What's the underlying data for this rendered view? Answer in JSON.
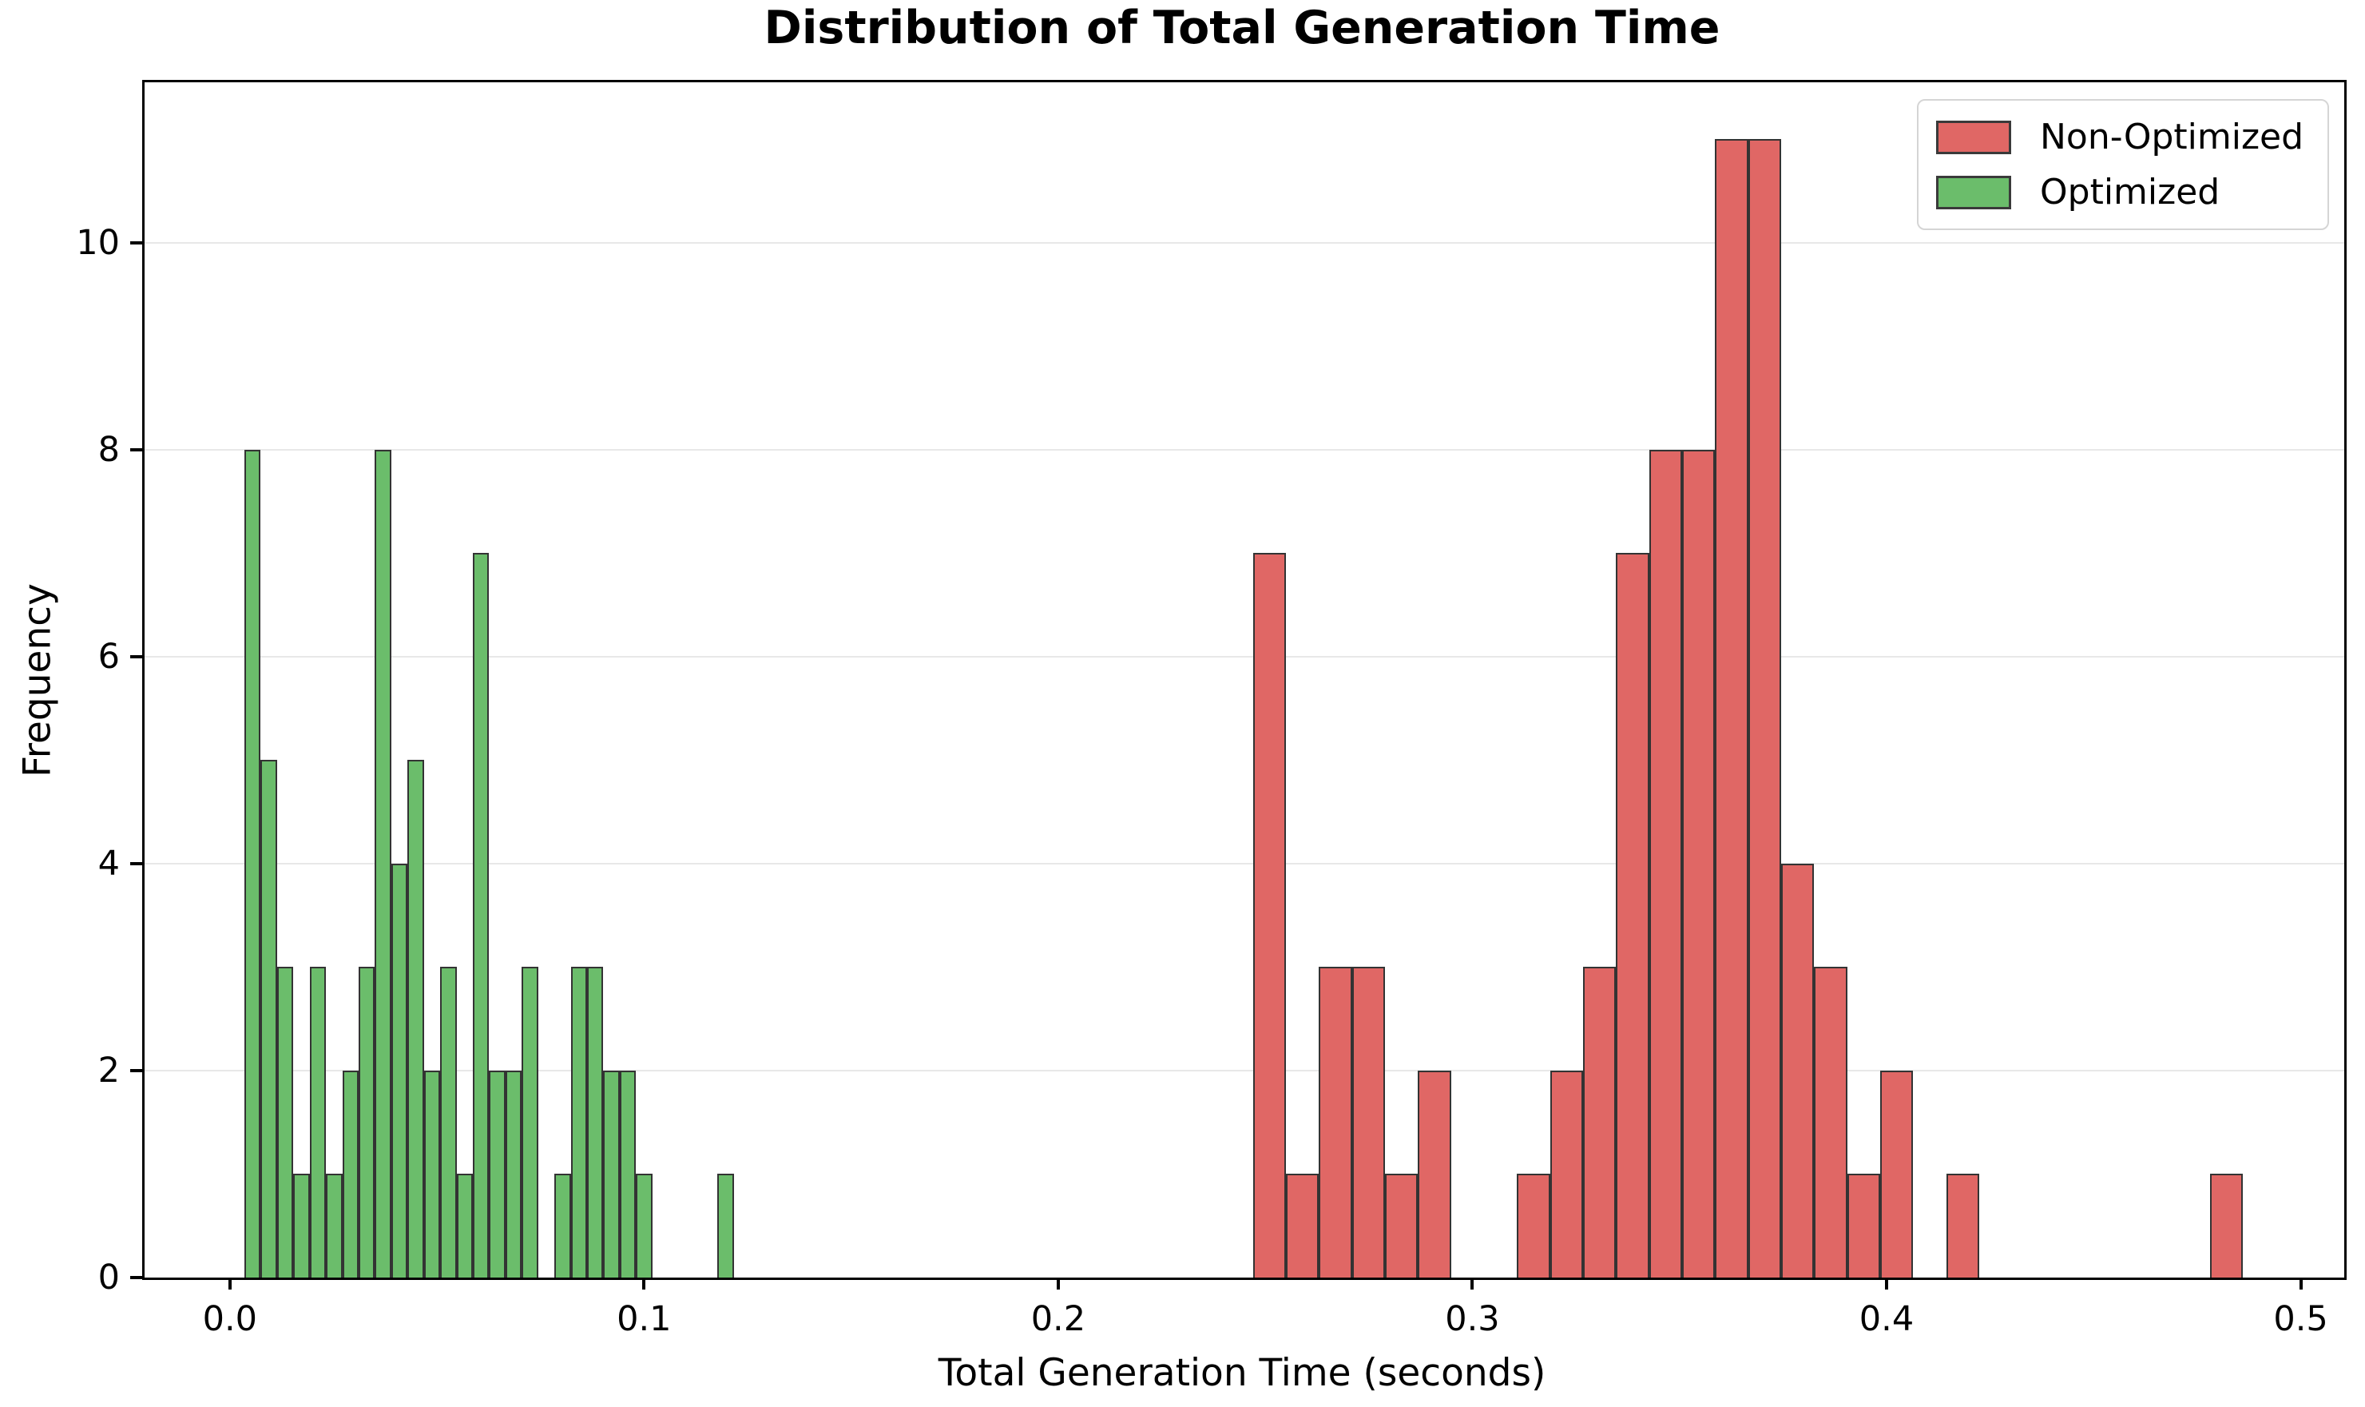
{
  "chart_data": {
    "type": "histogram",
    "title": "Distribution of Total Generation Time",
    "xlabel": "Total Generation Time (seconds)",
    "ylabel": "Frequency",
    "xlim": [
      -0.0206,
      0.5105
    ],
    "ylim": [
      0,
      11.55
    ],
    "xticks": [
      0.0,
      0.1,
      0.2,
      0.3,
      0.4,
      0.5
    ],
    "xtick_labels": [
      "0.0",
      "0.1",
      "0.2",
      "0.3",
      "0.4",
      "0.5"
    ],
    "yticks": [
      0,
      2,
      4,
      6,
      8,
      10
    ],
    "ytick_labels": [
      "0",
      "2",
      "4",
      "6",
      "8",
      "10"
    ],
    "grid": "horizontal",
    "grid_color": "#e8e8e8",
    "legend_position": "upper right",
    "series": [
      {
        "name": "Non-Optimized",
        "color": "#e06765",
        "edge_color": "#333333",
        "bin_start": 0.247,
        "bin_width": 0.00797,
        "counts": [
          7,
          1,
          3,
          3,
          1,
          2,
          0,
          0,
          1,
          2,
          3,
          7,
          8,
          8,
          11,
          11,
          4,
          3,
          1,
          2,
          0,
          1,
          0,
          0,
          0,
          0,
          0,
          0,
          0,
          1
        ]
      },
      {
        "name": "Optimized",
        "color": "#6bbd6b",
        "edge_color": "#333333",
        "bin_start": 0.0035,
        "bin_width": 0.00394,
        "counts": [
          8,
          5,
          3,
          1,
          3,
          1,
          2,
          3,
          8,
          4,
          5,
          2,
          3,
          1,
          7,
          2,
          2,
          3,
          0,
          1,
          3,
          3,
          2,
          2,
          1,
          0,
          0,
          0,
          0,
          1
        ]
      }
    ]
  }
}
